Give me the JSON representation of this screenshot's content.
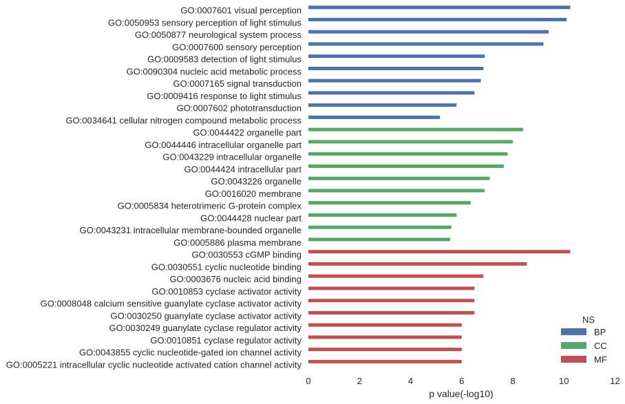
{
  "chart_data": {
    "type": "bar",
    "orientation": "horizontal",
    "xlabel": "p value(-log10)",
    "ylabel": "",
    "xlim": [
      0,
      12
    ],
    "xticks": [
      "0",
      "2",
      "4",
      "6",
      "8",
      "10",
      "12"
    ],
    "grid": false,
    "legend": {
      "title": "NS",
      "position": "bottom-right",
      "entries": [
        {
          "name": "BP",
          "color": "#4c72b0"
        },
        {
          "name": "CC",
          "color": "#55a868"
        },
        {
          "name": "MF",
          "color": "#c44e52"
        }
      ]
    },
    "categories": [
      "GO:0007601 visual perception",
      "GO:0050953 sensory perception of light stimulus",
      "GO:0050877 neurological system process",
      "GO:0007600 sensory perception",
      "GO:0009583 detection of light stimulus",
      "GO:0090304 nucleic acid metabolic process",
      "GO:0007165 signal transduction",
      "GO:0009416 response to light stimulus",
      "GO:0007602 phototransduction",
      "GO:0034641 cellular nitrogen compound metabolic process",
      "GO:0044422 organelle part",
      "GO:0044446 intracellular organelle part",
      "GO:0043229 intracellular organelle",
      "GO:0044424 intracellular part",
      "GO:0043226 organelle",
      "GO:0016020 membrane",
      "GO:0005834 heterotrimeric G-protein complex",
      "GO:0044428 nuclear part",
      "GO:0043231 intracellular membrane-bounded organelle",
      "GO:0005886 plasma membrane",
      "GO:0030553 cGMP binding",
      "GO:0030551 cyclic nucleotide binding",
      "GO:0003676 nucleic acid binding",
      "GO:0010853 cyclase activator activity",
      "GO:0008048 calcium sensitive guanylate cyclase activator activity",
      "GO:0030250 guanylate cyclase activator activity",
      "GO:0030249 guanylate cyclase regulator activity",
      "GO:0010851 cyclase regulator activity",
      "GO:0043855 cyclic nucleotide-gated ion channel activity",
      "GO:0005221 intracellular cyclic nucleotide activated cation channel activity"
    ],
    "series": [
      {
        "name": "BP",
        "color": "#4c72b0",
        "values": [
          10.25,
          10.1,
          9.4,
          9.2,
          6.9,
          6.85,
          6.75,
          6.5,
          5.8,
          5.15,
          null,
          null,
          null,
          null,
          null,
          null,
          null,
          null,
          null,
          null,
          null,
          null,
          null,
          null,
          null,
          null,
          null,
          null,
          null,
          null
        ]
      },
      {
        "name": "CC",
        "color": "#55a868",
        "values": [
          null,
          null,
          null,
          null,
          null,
          null,
          null,
          null,
          null,
          null,
          8.4,
          8.0,
          7.8,
          7.65,
          7.1,
          6.9,
          6.35,
          5.8,
          5.6,
          5.55,
          null,
          null,
          null,
          null,
          null,
          null,
          null,
          null,
          null,
          null
        ]
      },
      {
        "name": "MF",
        "color": "#c44e52",
        "values": [
          null,
          null,
          null,
          null,
          null,
          null,
          null,
          null,
          null,
          null,
          null,
          null,
          null,
          null,
          null,
          null,
          null,
          null,
          null,
          null,
          10.25,
          8.55,
          6.85,
          6.5,
          6.5,
          6.5,
          6.0,
          6.0,
          6.0,
          6.0
        ]
      }
    ]
  }
}
